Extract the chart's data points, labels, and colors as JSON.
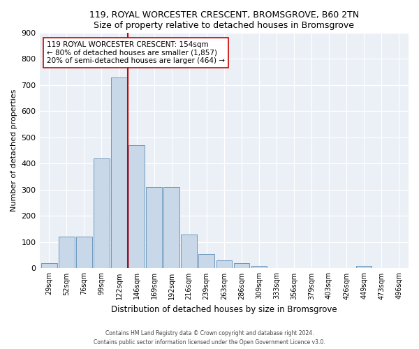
{
  "title1": "119, ROYAL WORCESTER CRESCENT, BROMSGROVE, B60 2TN",
  "title2": "Size of property relative to detached houses in Bromsgrove",
  "xlabel": "Distribution of detached houses by size in Bromsgrove",
  "ylabel": "Number of detached properties",
  "bar_color": "#c8d8e8",
  "bar_edge_color": "#5b8db8",
  "categories": [
    "29sqm",
    "52sqm",
    "76sqm",
    "99sqm",
    "122sqm",
    "146sqm",
    "169sqm",
    "192sqm",
    "216sqm",
    "239sqm",
    "263sqm",
    "286sqm",
    "309sqm",
    "333sqm",
    "356sqm",
    "379sqm",
    "403sqm",
    "426sqm",
    "449sqm",
    "473sqm",
    "496sqm"
  ],
  "values": [
    20,
    120,
    120,
    420,
    730,
    470,
    310,
    310,
    130,
    55,
    30,
    20,
    10,
    0,
    0,
    0,
    0,
    0,
    10,
    0,
    0
  ],
  "property_line_index": 5,
  "property_line_color": "#cc0000",
  "annotation_text": "119 ROYAL WORCESTER CRESCENT: 154sqm\n← 80% of detached houses are smaller (1,857)\n20% of semi-detached houses are larger (464) →",
  "annotation_box_color": "#ffffff",
  "annotation_box_edge": "#cc0000",
  "ylim": [
    0,
    900
  ],
  "yticks": [
    0,
    100,
    200,
    300,
    400,
    500,
    600,
    700,
    800,
    900
  ],
  "background_color": "#eaf0f6",
  "footer1": "Contains HM Land Registry data © Crown copyright and database right 2024.",
  "footer2": "Contains public sector information licensed under the Open Government Licence v3.0."
}
